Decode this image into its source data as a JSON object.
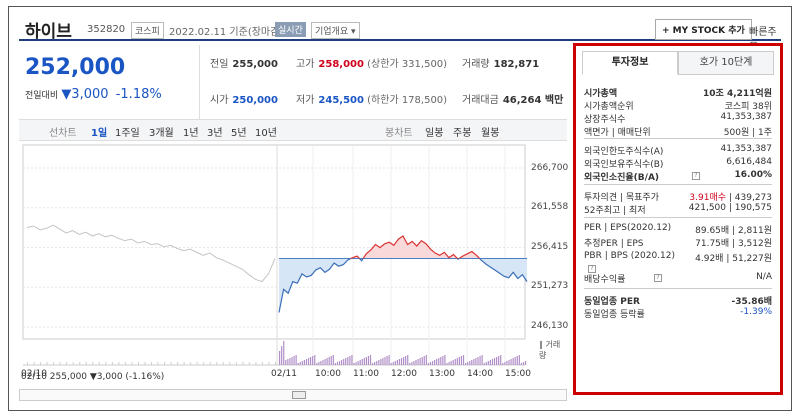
{
  "header": {
    "name": "하이브",
    "code": "352820",
    "market": "코스피",
    "date": "2022.02.11 기준(장마감)",
    "live": "실시간",
    "corp_info": "기업개요 ▾",
    "mystock": "+ MY STOCK 추가",
    "quick_order": "빠른주문 ▾"
  },
  "price": {
    "current": "252,000",
    "prev_label": "전일대비",
    "change": "▼3,000",
    "change_pct": "-1.18%"
  },
  "stats": {
    "prev_close_label": "전일",
    "prev_close": "255,000",
    "high_label": "고가",
    "high": "258,000",
    "upper_limit": "(상한가 331,500)",
    "volume_label": "거래량",
    "volume": "182,871",
    "open_label": "시가",
    "open": "250,000",
    "low_label": "저가",
    "low": "245,500",
    "lower_limit": "(하한가 178,500)",
    "amount_label": "거래대금",
    "amount": "46,264 백만"
  },
  "toolbar": {
    "line_chart": "선차트",
    "d1": "1일",
    "w1": "1주일",
    "m3": "3개월",
    "y1": "1년",
    "y3": "3년",
    "y5": "5년",
    "y10": "10년",
    "candle": "봉차트",
    "daily": "일봉",
    "weekly": "주봉",
    "monthly": "월봉"
  },
  "chart_data": {
    "type": "line",
    "yticks": [
      "266,700",
      "261,558",
      "256,415",
      "251,273",
      "246,130"
    ],
    "ylim": [
      246130,
      266700
    ],
    "reference": 255000,
    "xticks": [
      "02/10",
      "02/11",
      "10:00",
      "11:00",
      "12:00",
      "13:00",
      "14:00",
      "15:00"
    ],
    "volume_label": "‖ 거래량",
    "footer": "02/10  255,000 ▼3,000 (-1.16%)",
    "prev_day": [
      259000,
      259200,
      258700,
      258900,
      259300,
      258800,
      258300,
      258600,
      258100,
      258400,
      257900,
      258200,
      257800,
      258000,
      257600,
      257300,
      257500,
      257000,
      257200,
      256800,
      256900,
      256500,
      256700,
      256300,
      256000,
      256200,
      255800,
      255400,
      255700,
      255100,
      254800,
      254400,
      254000,
      253600,
      252900,
      252300,
      252000,
      253000,
      255000
    ],
    "today": [
      248000,
      251000,
      250500,
      252000,
      251800,
      253000,
      252600,
      252800,
      253500,
      253800,
      253200,
      253600,
      254400,
      254000,
      254200,
      254800,
      255100,
      255300,
      254700,
      255600,
      256100,
      256800,
      256400,
      256900,
      257100,
      256700,
      257500,
      257900,
      256800,
      257200,
      256600,
      257300,
      256900,
      256200,
      255700,
      255400,
      255800,
      255100,
      255500,
      254900,
      255300,
      255600,
      255900,
      255400,
      254800,
      254300,
      253900,
      253500,
      253100,
      252700,
      252500,
      253200,
      252400,
      252900,
      252000
    ]
  },
  "panel": {
    "tab_invest": "투자정보",
    "tab_quote": "호가 10단계",
    "rows": [
      {
        "k": "시가총액",
        "v": "10조 4,211억원",
        "bold": true
      },
      {
        "k": "시가총액순위",
        "v": "코스피 38위"
      },
      {
        "k": "상장주식수",
        "v": "41,353,387"
      },
      {
        "k": "액면가 | 매매단위",
        "v": "500원 | 1주"
      },
      {
        "k": "외국인한도주식수(A)",
        "v": "41,353,387"
      },
      {
        "k": "외국인보유주식수(B)",
        "v": "6,616,484"
      },
      {
        "k": "외국인소진율(B/A)",
        "v": "16.00%",
        "bold": true
      },
      {
        "k": "투자의견 | 목표주가",
        "v_red": "3.91매수",
        "v": "439,273"
      },
      {
        "k": "52주최고 | 최저",
        "v": "421,500 | 190,575"
      },
      {
        "k": "PER | EPS(2020.12)",
        "v": "89.65배 | 2,811원"
      },
      {
        "k": "추정PER | EPS",
        "v": "71.75배 | 3,512원"
      },
      {
        "k": "PBR | BPS (2020.12)",
        "v": "4.92배 | 51,227원"
      },
      {
        "k": "배당수익률",
        "v": "N/A"
      },
      {
        "k": "동일업종 PER",
        "v": "-35.86배",
        "bold": true
      },
      {
        "k": "동일업종 등락률",
        "v": "-1.39%",
        "blue": true
      }
    ]
  }
}
